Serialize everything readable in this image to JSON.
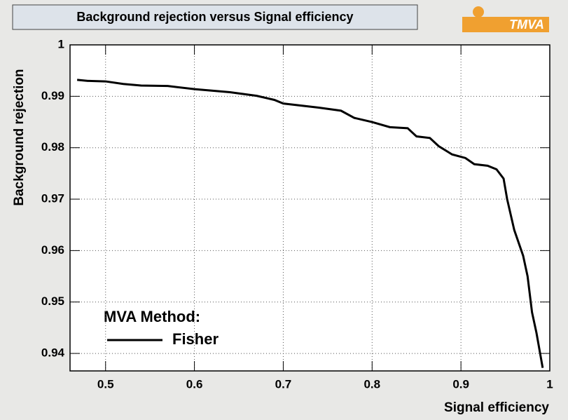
{
  "chart_data": {
    "type": "line",
    "title": "Background rejection versus Signal efficiency",
    "logo": "TMVA",
    "x_label": "Signal efficiency",
    "y_label": "Background rejection",
    "legend_title": "MVA Method:",
    "x": [
      0.468,
      0.48,
      0.5,
      0.52,
      0.54,
      0.57,
      0.6,
      0.64,
      0.67,
      0.69,
      0.7,
      0.74,
      0.765,
      0.78,
      0.8,
      0.82,
      0.84,
      0.85,
      0.865,
      0.875,
      0.89,
      0.905,
      0.915,
      0.93,
      0.94,
      0.948,
      0.952,
      0.96,
      0.97,
      0.975,
      0.98,
      0.985,
      0.992
    ],
    "series": [
      {
        "name": "Fisher",
        "color": "#000000",
        "values": [
          0.9932,
          0.993,
          0.9929,
          0.9924,
          0.9921,
          0.992,
          0.9914,
          0.9908,
          0.9901,
          0.9893,
          0.9886,
          0.9878,
          0.9872,
          0.9858,
          0.985,
          0.984,
          0.9838,
          0.9822,
          0.9819,
          0.9803,
          0.9787,
          0.978,
          0.9768,
          0.9765,
          0.9758,
          0.974,
          0.97,
          0.964,
          0.959,
          0.955,
          0.948,
          0.944,
          0.9372
        ]
      }
    ],
    "xlim": [
      0.46,
      1
    ],
    "ylim": [
      0.9366,
      1
    ],
    "xticks": [
      0.5,
      0.6,
      0.7,
      0.8,
      0.9,
      1
    ],
    "yticks": [
      0.94,
      0.95,
      0.96,
      0.97,
      0.98,
      0.99,
      1
    ],
    "grid": true
  }
}
